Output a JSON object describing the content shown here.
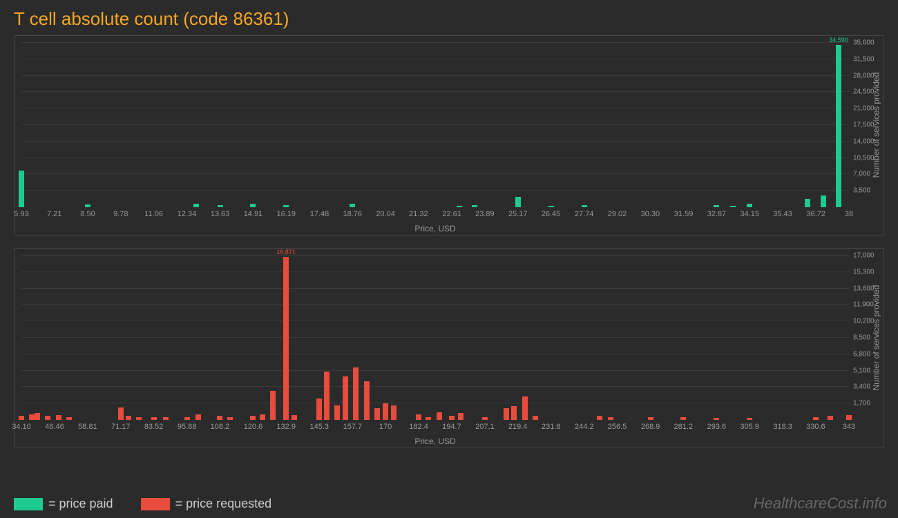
{
  "title": "T cell absolute count (code 86361)",
  "watermark": "HealthcareCost.info",
  "legend": {
    "paid": "= price paid",
    "requested": "= price requested"
  },
  "colors": {
    "background": "#2b2b2b",
    "title": "#f5a623",
    "paid": "#1ecb8f",
    "requested": "#e74c3c",
    "grid": "#3a3a3a",
    "axis_text": "#999999",
    "watermark": "#666666"
  },
  "chart_top": {
    "type": "bar",
    "series_color": "#1ecb8f",
    "x_label": "Price, USD",
    "y_label": "Number of services provided",
    "x_ticks": [
      "5.93",
      "7.21",
      "8.50",
      "9.78",
      "11.06",
      "12.34",
      "13.63",
      "14.91",
      "16.19",
      "17.48",
      "18.76",
      "20.04",
      "21.32",
      "22.61",
      "23.89",
      "25.17",
      "26.45",
      "27.74",
      "29.02",
      "30.30",
      "31.59",
      "32.87",
      "34.15",
      "35.43",
      "36.72",
      "38"
    ],
    "y_ticks": [
      3500,
      7000,
      10500,
      14000,
      17500,
      21000,
      24500,
      28000,
      31500,
      35000
    ],
    "y_max": 35000,
    "peak_label": "34,590",
    "bars": [
      {
        "x": 5.93,
        "y": 7800
      },
      {
        "x": 8.5,
        "y": 600
      },
      {
        "x": 12.7,
        "y": 700
      },
      {
        "x": 13.63,
        "y": 400
      },
      {
        "x": 14.91,
        "y": 700
      },
      {
        "x": 16.19,
        "y": 400
      },
      {
        "x": 18.76,
        "y": 800
      },
      {
        "x": 22.9,
        "y": 300
      },
      {
        "x": 23.5,
        "y": 400
      },
      {
        "x": 25.17,
        "y": 2200
      },
      {
        "x": 26.45,
        "y": 300
      },
      {
        "x": 27.74,
        "y": 400
      },
      {
        "x": 32.87,
        "y": 400
      },
      {
        "x": 33.5,
        "y": 300
      },
      {
        "x": 34.15,
        "y": 700
      },
      {
        "x": 36.4,
        "y": 1800
      },
      {
        "x": 37.0,
        "y": 2500
      },
      {
        "x": 37.6,
        "y": 34590
      }
    ],
    "xlim": [
      5.93,
      38
    ]
  },
  "chart_bottom": {
    "type": "bar",
    "series_color": "#e74c3c",
    "x_label": "Price, USD",
    "y_label": "Number of services provided",
    "x_ticks": [
      "34.10",
      "46.46",
      "58.81",
      "71.17",
      "83.52",
      "95.88",
      "108.2",
      "120.6",
      "132.9",
      "145.3",
      "157.7",
      "170",
      "182.4",
      "194.7",
      "207.1",
      "219.4",
      "231.8",
      "244.2",
      "256.5",
      "268.9",
      "281.2",
      "293.6",
      "305.9",
      "318.3",
      "330.6",
      "343"
    ],
    "y_ticks": [
      1700,
      3400,
      5100,
      6800,
      8500,
      10200,
      11900,
      13600,
      15300,
      17000
    ],
    "y_max": 17000,
    "peak_label": "16,871",
    "bars": [
      {
        "x": 34.1,
        "y": 400
      },
      {
        "x": 38,
        "y": 600
      },
      {
        "x": 40,
        "y": 700
      },
      {
        "x": 44,
        "y": 400
      },
      {
        "x": 48,
        "y": 500
      },
      {
        "x": 52,
        "y": 300
      },
      {
        "x": 71.17,
        "y": 1300
      },
      {
        "x": 74,
        "y": 400
      },
      {
        "x": 78,
        "y": 300
      },
      {
        "x": 83.52,
        "y": 300
      },
      {
        "x": 88,
        "y": 300
      },
      {
        "x": 95.88,
        "y": 300
      },
      {
        "x": 100,
        "y": 600
      },
      {
        "x": 108.2,
        "y": 400
      },
      {
        "x": 112,
        "y": 300
      },
      {
        "x": 120.6,
        "y": 400
      },
      {
        "x": 124,
        "y": 600
      },
      {
        "x": 128,
        "y": 3000
      },
      {
        "x": 132.9,
        "y": 16871
      },
      {
        "x": 136,
        "y": 500
      },
      {
        "x": 145.3,
        "y": 2200
      },
      {
        "x": 148,
        "y": 5000
      },
      {
        "x": 152,
        "y": 1500
      },
      {
        "x": 155,
        "y": 4500
      },
      {
        "x": 159,
        "y": 5400
      },
      {
        "x": 163,
        "y": 4000
      },
      {
        "x": 167,
        "y": 1200
      },
      {
        "x": 170,
        "y": 1700
      },
      {
        "x": 173,
        "y": 1500
      },
      {
        "x": 182.4,
        "y": 600
      },
      {
        "x": 186,
        "y": 300
      },
      {
        "x": 190,
        "y": 800
      },
      {
        "x": 194.7,
        "y": 400
      },
      {
        "x": 198,
        "y": 700
      },
      {
        "x": 207.1,
        "y": 300
      },
      {
        "x": 215,
        "y": 1200
      },
      {
        "x": 218,
        "y": 1400
      },
      {
        "x": 222,
        "y": 2400
      },
      {
        "x": 226,
        "y": 400
      },
      {
        "x": 250,
        "y": 400
      },
      {
        "x": 254,
        "y": 300
      },
      {
        "x": 268.9,
        "y": 300
      },
      {
        "x": 281.2,
        "y": 300
      },
      {
        "x": 293.6,
        "y": 200
      },
      {
        "x": 305.9,
        "y": 200
      },
      {
        "x": 330.6,
        "y": 300
      },
      {
        "x": 336,
        "y": 400
      },
      {
        "x": 343,
        "y": 500
      }
    ],
    "xlim": [
      34.1,
      343
    ]
  }
}
